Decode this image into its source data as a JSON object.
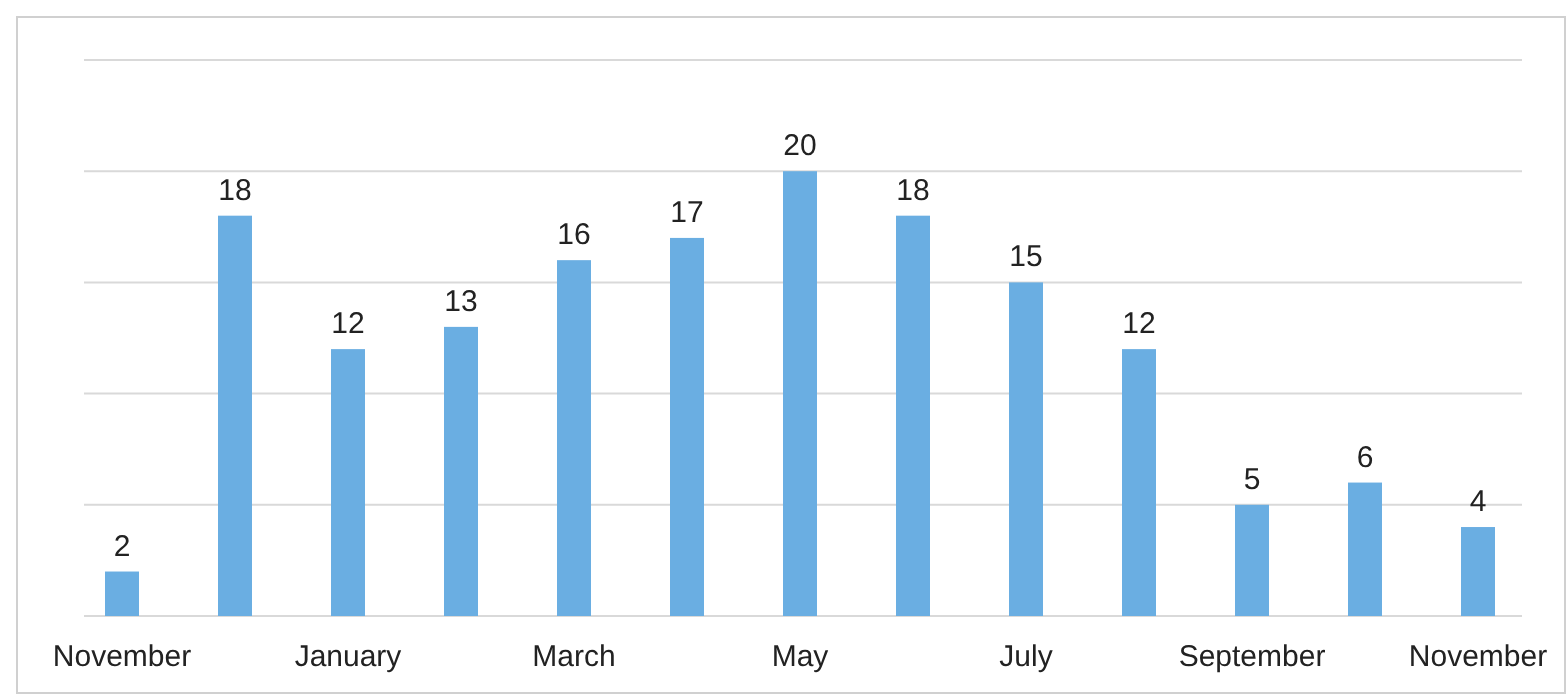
{
  "chart_data": {
    "type": "bar",
    "categories": [
      "November",
      null,
      "January",
      null,
      "March",
      null,
      "May",
      null,
      "July",
      null,
      "September",
      null,
      "November"
    ],
    "values": [
      2,
      18,
      12,
      13,
      16,
      17,
      20,
      18,
      15,
      12,
      5,
      6,
      4
    ],
    "color": "#6aaee2",
    "ylim": [
      0,
      25
    ],
    "yticks": [
      {
        "value": 0,
        "label": null
      },
      {
        "value": 5,
        "label": null
      },
      {
        "value": 10,
        "label": null
      },
      {
        "value": 15,
        "label": null
      },
      {
        "value": 20,
        "label": null
      },
      {
        "value": 25,
        "label": null
      }
    ],
    "grid": "y",
    "tick_labels": "x",
    "data_labels": true
  }
}
